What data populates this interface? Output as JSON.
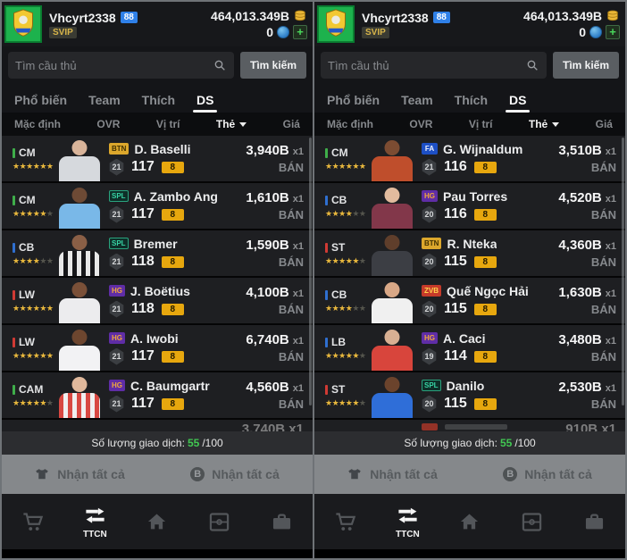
{
  "header": {
    "username": "Vhcyrt2338",
    "level": "88",
    "svip": "SVIP",
    "bp": "464,013.349B",
    "fc": "0",
    "add_label": "+"
  },
  "search": {
    "placeholder": "Tìm cầu thủ",
    "button_label": "Tìm kiếm"
  },
  "tabs": {
    "items": [
      "Phổ biến",
      "Team",
      "Thích",
      "DS"
    ],
    "active_index": 3
  },
  "filters": {
    "items": [
      "Mặc định",
      "OVR",
      "Vị trí",
      "Thẻ",
      "Giá"
    ],
    "active_index": 3
  },
  "labels": {
    "sell": "BÁN"
  },
  "footer": {
    "txn_label": "Số lượng giao dịch:",
    "txn_count": "55",
    "txn_total": "/100",
    "buttons": {
      "left_label": "Nhận tất cả",
      "right_label": "Nhận tất cả",
      "right_icon_letter": "B"
    }
  },
  "nav": {
    "items": [
      {
        "name": "shop"
      },
      {
        "name": "ttcn",
        "label": "TTCN",
        "active": true
      },
      {
        "name": "home"
      },
      {
        "name": "squad"
      },
      {
        "name": "inventory"
      }
    ]
  },
  "icons": {
    "star": "★",
    "search": "magnifier",
    "bp": "gold-coin-stack",
    "fc": "blue-coin",
    "receive_left": "jersey",
    "receive_right": "bp-coin",
    "nav": [
      "shopping-cart",
      "transfer-arrows",
      "home",
      "pitch",
      "bag"
    ]
  },
  "colors": {
    "position_midfield": "#3fae4a",
    "position_defense": "#2f6fd0",
    "position_forward": "#d03a34",
    "star_gold": "#e9b83d",
    "txn_green": "#41c752",
    "salary_gold": "#e7a70e"
  },
  "panels": [
    {
      "players": [
        {
          "pos": "CM",
          "pos_color": "#3fae4a",
          "stars": 6,
          "badge": {
            "text": "BTN",
            "bg": "#dca72c",
            "fg": "#403000"
          },
          "name": "D. Baselli",
          "level": "21",
          "ovr": "117",
          "salary": "8",
          "price": "3,940B",
          "qty": "x1",
          "skin": "#d9b49a",
          "jersey": [
            "#d6d9dd",
            "#d6d9dd"
          ]
        },
        {
          "pos": "CM",
          "pos_color": "#3fae4a",
          "stars": 5,
          "badge": {
            "text": "SPL",
            "bg": "#0e2f28",
            "fg": "#37d3a4",
            "bd": "#2aa37e"
          },
          "name": "A. Zambo Ang",
          "level": "21",
          "ovr": "117",
          "salary": "8",
          "price": "1,610B",
          "qty": "x1",
          "skin": "#6d4a35",
          "jersey": [
            "#79b8e8",
            "#79b8e8"
          ]
        },
        {
          "pos": "CB",
          "pos_color": "#2f6fd0",
          "stars": 4,
          "badge": {
            "text": "SPL",
            "bg": "#0e2f28",
            "fg": "#37d3a4",
            "bd": "#2aa37e"
          },
          "name": "Bremer",
          "level": "21",
          "ovr": "118",
          "salary": "8",
          "price": "1,590B",
          "qty": "x1",
          "skin": "#8a5f46",
          "jersey": [
            "#e8e8e8",
            "#17171a"
          ]
        },
        {
          "pos": "LW",
          "pos_color": "#d03a34",
          "stars": 6,
          "badge": {
            "text": "HG",
            "bg": "#5f2da6",
            "fg": "#f2a93b"
          },
          "name": "J. Boëtius",
          "level": "21",
          "ovr": "118",
          "salary": "8",
          "price": "4,100B",
          "qty": "x1",
          "skin": "#7a5038",
          "jersey": [
            "#ececee",
            "#ececee"
          ]
        },
        {
          "pos": "LW",
          "pos_color": "#d03a34",
          "stars": 6,
          "badge": {
            "text": "HG",
            "bg": "#5f2da6",
            "fg": "#f2a93b"
          },
          "name": "A. Iwobi",
          "level": "21",
          "ovr": "117",
          "salary": "8",
          "price": "6,740B",
          "qty": "x1",
          "skin": "#6d462f",
          "jersey": [
            "#f2f2f4",
            "#f2f2f4"
          ]
        },
        {
          "pos": "CAM",
          "pos_color": "#3fae4a",
          "stars": 5,
          "badge": {
            "text": "HG",
            "bg": "#5f2da6",
            "fg": "#f2a93b"
          },
          "name": "C. Baumgartr",
          "level": "21",
          "ovr": "117",
          "salary": "8",
          "price": "4,560B",
          "qty": "x1",
          "skin": "#e0b89c",
          "jersey": [
            "#d84842",
            "#f0eff0"
          ]
        }
      ],
      "partial": {
        "price": "3,740B",
        "qty": "x1",
        "badge_bg": null
      }
    },
    {
      "players": [
        {
          "pos": "CM",
          "pos_color": "#3fae4a",
          "stars": 6,
          "badge": {
            "text": "FA",
            "bg": "#1d4fc4",
            "fg": "#eef2ff"
          },
          "name": "G. Wijnaldum",
          "level": "21",
          "ovr": "116",
          "salary": "8",
          "price": "3,510B",
          "qty": "x1",
          "skin": "#7c4c32",
          "jersey": [
            "#bf4e2c",
            "#bf4e2c"
          ]
        },
        {
          "pos": "CB",
          "pos_color": "#2f6fd0",
          "stars": 4,
          "badge": {
            "text": "HG",
            "bg": "#5f2da6",
            "fg": "#f2a93b"
          },
          "name": "Pau Torres",
          "level": "20",
          "ovr": "116",
          "salary": "8",
          "price": "4,520B",
          "qty": "x1",
          "skin": "#e2bb9e",
          "jersey": [
            "#82374a",
            "#82374a"
          ]
        },
        {
          "pos": "ST",
          "pos_color": "#d03a34",
          "stars": 5,
          "badge": {
            "text": "BTN",
            "bg": "#dca72c",
            "fg": "#403000"
          },
          "name": "R. Nteka",
          "level": "20",
          "ovr": "115",
          "salary": "8",
          "price": "4,360B",
          "qty": "x1",
          "skin": "#5f3e2b",
          "jersey": [
            "#3c3e44",
            "#3c3e44"
          ]
        },
        {
          "pos": "CB",
          "pos_color": "#2f6fd0",
          "stars": 4,
          "badge": {
            "text": "ZVB",
            "bg": "#c53a2a",
            "fg": "#ffd34d"
          },
          "name": "Quế Ngọc Hải",
          "level": "20",
          "ovr": "115",
          "salary": "8",
          "price": "1,630B",
          "qty": "x1",
          "skin": "#d9a887",
          "jersey": [
            "#f0f0f0",
            "#f0f0f0"
          ]
        },
        {
          "pos": "LB",
          "pos_color": "#2f6fd0",
          "stars": 5,
          "badge": {
            "text": "HG",
            "bg": "#5f2da6",
            "fg": "#f2a93b"
          },
          "name": "A. Caci",
          "level": "19",
          "ovr": "114",
          "salary": "8",
          "price": "3,480B",
          "qty": "x1",
          "skin": "#d8b093",
          "jersey": [
            "#d8453c",
            "#d8453c"
          ]
        },
        {
          "pos": "ST",
          "pos_color": "#d03a34",
          "stars": 5,
          "badge": {
            "text": "SPL",
            "bg": "#0e2f28",
            "fg": "#37d3a4",
            "bd": "#2aa37e"
          },
          "name": "Danilo",
          "level": "20",
          "ovr": "115",
          "salary": "8",
          "price": "2,530B",
          "qty": "x1",
          "skin": "#6b432c",
          "jersey": [
            "#2f6ed8",
            "#2f6ed8"
          ]
        }
      ],
      "partial": {
        "price": "910B",
        "qty": "x1",
        "badge_bg": "#c53a2a"
      }
    }
  ]
}
